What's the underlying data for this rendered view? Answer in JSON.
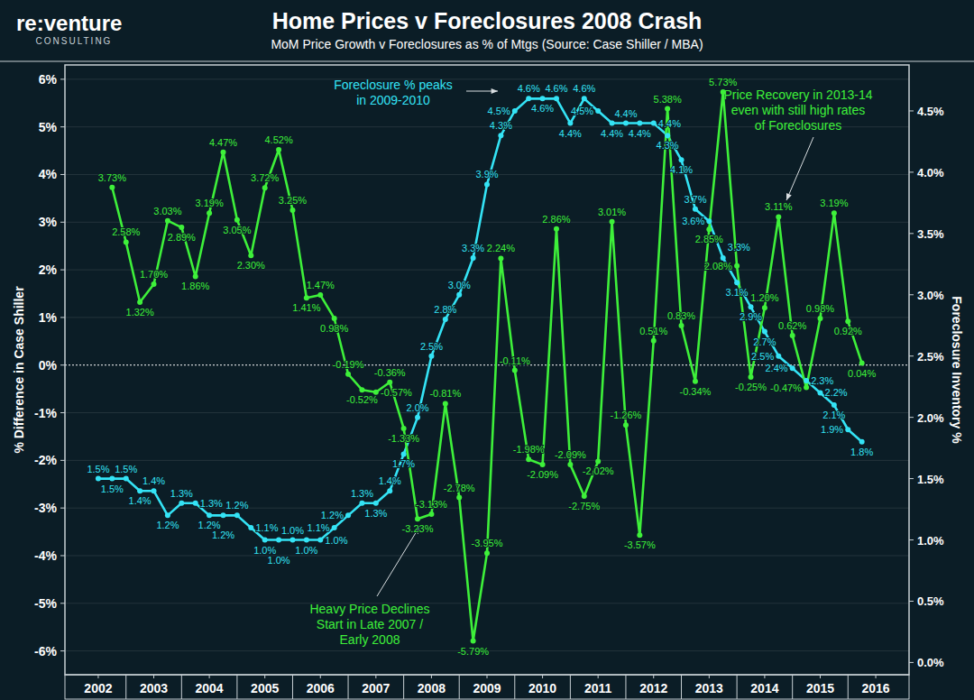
{
  "chart_data": {
    "type": "line",
    "brand": "re:venture",
    "brand_sub": "CONSULTING",
    "title": "Home Prices v Foreclosures 2008 Crash",
    "subtitle": "MoM Price Growth v Foreclosures as % of Mtgs (Source: Case Shiller / MBA)",
    "ylabel": "% Difference in Case Shiller",
    "y2label": "Foreclosure Inventory %",
    "annotations": [
      [
        "Foreclosure % peaks",
        "in 2009-2010"
      ],
      [
        "Price Recovery in 2013-14",
        "even with still high rates",
        "of Foreclosures"
      ],
      [
        "Heavy Price Declines",
        "Start in Late 2007 /",
        "Early 2008"
      ]
    ],
    "x": [
      2002,
      2002.25,
      2002.5,
      2002.75,
      2003,
      2003.25,
      2003.5,
      2003.75,
      2004,
      2004.25,
      2004.5,
      2004.75,
      2005,
      2005.25,
      2005.5,
      2005.75,
      2006,
      2006.25,
      2006.5,
      2006.75,
      2007,
      2007.25,
      2007.5,
      2007.75,
      2008,
      2008.25,
      2008.5,
      2008.75,
      2009,
      2009.25,
      2009.5,
      2009.75,
      2010,
      2010.25,
      2010.5,
      2010.75,
      2011,
      2011.25,
      2011.5,
      2011.75,
      2012,
      2012.25,
      2012.5,
      2012.75,
      2013,
      2013.25,
      2013.5,
      2013.75,
      2014,
      2014.25,
      2014.5,
      2014.75,
      2015,
      2015.25,
      2015.5,
      2015.75
    ],
    "xlim": [
      2001.4,
      2016.6
    ],
    "xticks": [
      2002,
      2003,
      2004,
      2005,
      2006,
      2007,
      2008,
      2009,
      2010,
      2011,
      2012,
      2013,
      2014,
      2015,
      2016
    ],
    "ylim": [
      -6.5,
      6.3
    ],
    "yticks": [
      {
        "value": -6,
        "label": "-6%"
      },
      {
        "value": -5,
        "label": "-5%"
      },
      {
        "value": -4,
        "label": "-4%"
      },
      {
        "value": -3,
        "label": "-3%"
      },
      {
        "value": -2,
        "label": "-2%"
      },
      {
        "value": -1,
        "label": "-1%"
      },
      {
        "value": 0,
        "label": "0%"
      },
      {
        "value": 1,
        "label": "1%"
      },
      {
        "value": 2,
        "label": "2%"
      },
      {
        "value": 3,
        "label": "3%"
      },
      {
        "value": 4,
        "label": "4%"
      },
      {
        "value": 5,
        "label": "5%"
      },
      {
        "value": 6,
        "label": "6%"
      }
    ],
    "y2lim": [
      -0.1,
      4.875
    ],
    "y2ticks": [
      {
        "value": 0,
        "label": "0.0%"
      },
      {
        "value": 0.5,
        "label": "0.5%"
      },
      {
        "value": 1,
        "label": "1.0%"
      },
      {
        "value": 1.5,
        "label": "1.5%"
      },
      {
        "value": 2,
        "label": "2.0%"
      },
      {
        "value": 2.5,
        "label": "2.5%"
      },
      {
        "value": 3,
        "label": "3.0%"
      },
      {
        "value": 3.5,
        "label": "3.5%"
      },
      {
        "value": 4,
        "label": "4.0%"
      },
      {
        "value": 4.5,
        "label": "4.5%"
      }
    ],
    "grid": true,
    "data_labels": true,
    "marker": "circle",
    "series": [
      {
        "color": "#3ef03a",
        "axis": "y",
        "values": [
          null,
          3.73,
          2.58,
          1.32,
          1.7,
          3.03,
          2.89,
          1.86,
          3.19,
          4.47,
          3.05,
          2.3,
          3.72,
          4.52,
          3.25,
          1.41,
          1.47,
          0.98,
          -0.19,
          -0.52,
          -0.57,
          -0.36,
          -1.33,
          -3.23,
          -3.13,
          -0.81,
          -2.78,
          -5.79,
          -3.95,
          2.24,
          -0.11,
          -1.98,
          -2.09,
          2.86,
          -2.09,
          -2.75,
          -2.02,
          3.01,
          -1.26,
          -3.57,
          0.51,
          5.38,
          0.83,
          -0.34,
          2.85,
          5.73,
          2.08,
          -0.25,
          1.2,
          3.11,
          0.62,
          -0.47,
          0.98,
          3.19,
          0.92,
          0.04
        ],
        "value_labels": [
          null,
          "3.73%",
          "2.58%",
          "1.32%",
          "1.70%",
          "3.03%",
          "2.89%",
          "1.86%",
          "3.19%",
          "4.47%",
          "3.05%",
          "2.30%",
          "3.72%",
          "4.52%",
          "3.25%",
          "1.41%",
          "1.47%",
          "0.98%",
          "-0.19%",
          "-0.52%",
          "-0.57%",
          "-0.36%",
          "-1.33%",
          "-3.23%",
          "-3.13%",
          "-0.81%",
          "-2.78%",
          "-5.79%",
          "-3.95%",
          "2.24%",
          "-0.11%",
          "-1.98%",
          "-2.09%",
          "2.86%",
          "-2.09%",
          "-2.75%",
          "-2.02%",
          "3.01%",
          "-1.26%",
          "-3.57%",
          "0.51%",
          "5.38%",
          "0.83%",
          "-0.34%",
          "2.85%",
          "5.73%",
          "2.08%",
          "-0.25%",
          "1.20%",
          "3.11%",
          "0.62%",
          "-0.47%",
          "0.98%",
          "3.19%",
          "0.92%",
          "0.04%"
        ]
      },
      {
        "color": "#34e3f5",
        "axis": "y2",
        "values": [
          1.5,
          1.5,
          1.5,
          1.4,
          1.4,
          1.2,
          1.3,
          1.3,
          1.2,
          1.2,
          1.2,
          1.1,
          1.0,
          1.0,
          1.0,
          1.0,
          1.0,
          1.1,
          1.2,
          1.3,
          1.3,
          1.4,
          1.7,
          2.0,
          2.5,
          2.8,
          3.0,
          3.3,
          3.9,
          4.3,
          4.5,
          4.6,
          4.6,
          4.6,
          4.4,
          4.6,
          4.5,
          4.4,
          4.4,
          4.4,
          4.4,
          4.3,
          4.1,
          3.7,
          3.6,
          3.3,
          3.1,
          2.9,
          2.7,
          2.5,
          2.4,
          2.3,
          2.2,
          2.1,
          1.9,
          1.8
        ],
        "value_labels": [
          "1.5%",
          "1.5%",
          "1.5%",
          "1.4%",
          "1.4%",
          "1.2%",
          "1.3%",
          "1.3%",
          "1.2%",
          "1.2%",
          "1.2%",
          "1.1%",
          "1.0%",
          "1.0%",
          "1.0%",
          "1.0%",
          "1.0%",
          "1.1%",
          "1.2%",
          "1.3%",
          "1.3%",
          "1.4%",
          "1.7%",
          "2.0%",
          "2.5%",
          "2.8%",
          "3.0%",
          "3.3%",
          "3.9%",
          "4.3%",
          "4.5%",
          "4.6%",
          "4.6%",
          "4.6%",
          "4.4%",
          "4.6%",
          "4.5%",
          "4.4%",
          "4.4%",
          "4.4%",
          "4.4%",
          "4.3%",
          "4.1%",
          "3.7%",
          "3.6%",
          "3.3%",
          "3.1%",
          "2.9%",
          "2.7%",
          "2.5%",
          "2.4%",
          "2.3%",
          "2.2%",
          "2.1%",
          "1.9%",
          "1.8%"
        ]
      }
    ]
  }
}
